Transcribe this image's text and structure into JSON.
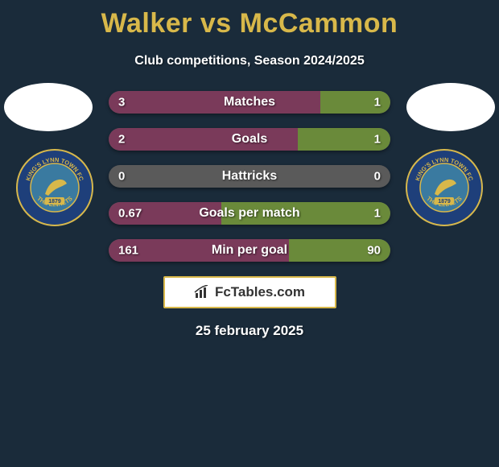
{
  "title": "Walker vs McCammon",
  "subtitle": "Club competitions, Season 2024/2025",
  "date": "25 february 2025",
  "brand": "FcTables.com",
  "colors": {
    "background": "#1a2b3a",
    "accent": "#d8b84a",
    "left_fill": "#7a3a5a",
    "right_fill": "#6a8a3a",
    "neutral_fill": "#5a5a5a",
    "text": "#ffffff",
    "crest_primary": "#1e3f7a",
    "crest_secondary": "#d8b84a",
    "crest_inner": "#3a7aa0"
  },
  "crest": {
    "top_text": "KING'S LYNN TOWN FC",
    "bottom_text": "THE LINNETS",
    "year": "1879"
  },
  "stats": [
    {
      "label": "Matches",
      "left_val": "3",
      "right_val": "1",
      "left_pct": 75,
      "right_pct": 25
    },
    {
      "label": "Goals",
      "left_val": "2",
      "right_val": "1",
      "left_pct": 67,
      "right_pct": 33
    },
    {
      "label": "Hattricks",
      "left_val": "0",
      "right_val": "0",
      "left_pct": 0,
      "right_pct": 0
    },
    {
      "label": "Goals per match",
      "left_val": "0.67",
      "right_val": "1",
      "left_pct": 40,
      "right_pct": 60
    },
    {
      "label": "Min per goal",
      "left_val": "161",
      "right_val": "90",
      "left_pct": 64,
      "right_pct": 36
    }
  ]
}
